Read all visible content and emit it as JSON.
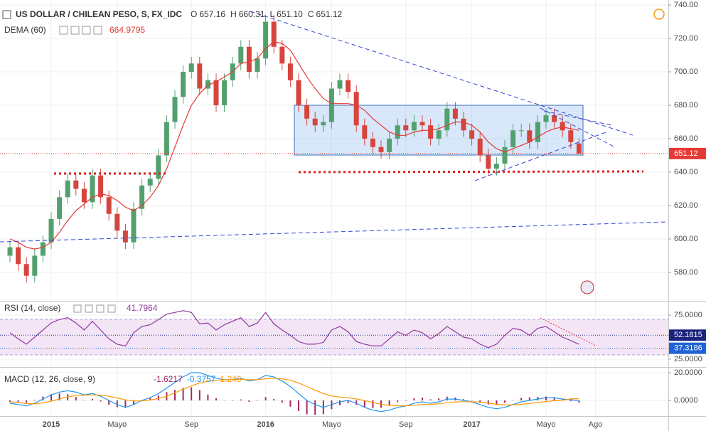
{
  "chart_data": [
    {
      "type": "candlestick",
      "title": "US DOLLAR / CHILEAN PESO, S, FX_IDC",
      "header_keys": [
        "O",
        "H",
        "L",
        "C"
      ],
      "header_values": [
        "657.16",
        "660.31",
        "651.10",
        "651.12"
      ],
      "categories": [
        null,
        null,
        null,
        null,
        null,
        "2015",
        null,
        null,
        null,
        null,
        null,
        null,
        null,
        "Mayo",
        null,
        null,
        null,
        null,
        null,
        null,
        null,
        null,
        "Sep",
        null,
        null,
        null,
        null,
        null,
        null,
        null,
        null,
        "2016",
        null,
        null,
        null,
        null,
        null,
        null,
        null,
        "Mayo",
        null,
        null,
        null,
        null,
        null,
        null,
        null,
        null,
        "Sep",
        null,
        null,
        null,
        null,
        null,
        null,
        null,
        "2017",
        null,
        null,
        null,
        null,
        null,
        null,
        null,
        null,
        "Mayo",
        null,
        null,
        null,
        null,
        null,
        "Ago"
      ],
      "open": [
        590,
        595,
        585,
        578,
        590,
        598,
        612,
        625,
        635,
        630,
        622,
        638,
        625,
        615,
        605,
        598,
        618,
        632,
        636,
        650,
        670,
        685,
        700,
        705,
        690,
        695,
        680,
        695,
        705,
        715,
        700,
        708,
        730,
        715,
        705,
        695,
        680,
        672,
        668,
        670,
        690,
        695,
        688,
        668,
        660,
        655,
        652,
        660,
        668,
        665,
        670,
        668,
        660,
        665,
        678,
        672,
        665,
        660,
        650,
        642,
        645,
        655,
        665,
        665,
        658,
        670,
        674,
        670,
        665,
        657.16,
        null,
        null
      ],
      "high": [
        599,
        599,
        589,
        594,
        602,
        616,
        629,
        639,
        639,
        634,
        642,
        642,
        629,
        619,
        609,
        622,
        636,
        640,
        654,
        674,
        689,
        704,
        709,
        709,
        699,
        699,
        699,
        709,
        719,
        719,
        712,
        734,
        734,
        719,
        709,
        699,
        684,
        676,
        674,
        694,
        699,
        699,
        692,
        672,
        664,
        659,
        664,
        672,
        672,
        674,
        674,
        672,
        669,
        682,
        682,
        676,
        669,
        664,
        654,
        649,
        659,
        669,
        669,
        669,
        674,
        678,
        678,
        674,
        669,
        660.31,
        null,
        null
      ],
      "low": [
        586,
        581,
        574,
        574,
        586,
        594,
        608,
        621,
        626,
        618,
        618,
        621,
        611,
        601,
        594,
        594,
        614,
        628,
        632,
        646,
        666,
        681,
        696,
        686,
        686,
        676,
        676,
        691,
        701,
        696,
        696,
        704,
        711,
        701,
        691,
        676,
        668,
        664,
        664,
        666,
        686,
        684,
        664,
        656,
        651,
        648,
        648,
        656,
        661,
        661,
        664,
        656,
        656,
        661,
        668,
        661,
        656,
        646,
        638,
        638,
        641,
        651,
        661,
        654,
        654,
        666,
        666,
        661,
        654,
        651.1,
        null,
        null
      ],
      "close": [
        595,
        585,
        578,
        590,
        598,
        612,
        625,
        635,
        630,
        622,
        638,
        625,
        615,
        605,
        598,
        618,
        632,
        636,
        650,
        670,
        685,
        700,
        705,
        690,
        695,
        680,
        695,
        705,
        715,
        700,
        708,
        730,
        715,
        705,
        695,
        680,
        672,
        668,
        670,
        690,
        695,
        688,
        668,
        660,
        655,
        652,
        660,
        668,
        665,
        670,
        668,
        660,
        665,
        678,
        672,
        665,
        660,
        650,
        642,
        645,
        655,
        665,
        665,
        658,
        670,
        674,
        670,
        665,
        658,
        651.12,
        null,
        null
      ],
      "up_color": "#53a06f",
      "down_color": "#d6453d",
      "series": [
        {
          "name": "DEMA (60)",
          "color": "#e53935",
          "values": [
            600,
            598,
            595,
            594,
            595,
            598,
            604,
            611,
            617,
            621,
            625,
            627,
            626,
            623,
            619,
            617,
            620,
            625,
            632,
            642,
            655,
            668,
            680,
            687,
            692,
            694,
            697,
            700,
            705,
            706,
            708,
            714,
            718,
            717,
            713,
            705,
            697,
            690,
            684,
            681,
            681,
            681,
            680,
            677,
            672,
            668,
            664,
            662,
            662,
            664,
            665,
            665,
            666,
            668,
            670,
            670,
            668,
            664,
            658,
            654,
            652,
            654,
            656,
            658,
            661,
            664,
            666,
            667,
            666,
            664.9795,
            null,
            null
          ]
        }
      ],
      "ylim": [
        563.4,
        743
      ],
      "yticks": [
        {
          "value": 580,
          "label": "580.00"
        },
        {
          "value": 600,
          "label": "600.00"
        },
        {
          "value": 620,
          "label": "620.00"
        },
        {
          "value": 640,
          "label": "640.00"
        },
        {
          "value": 660,
          "label": "660.00"
        },
        {
          "value": 680,
          "label": "680.00"
        },
        {
          "value": 700,
          "label": "700.00"
        },
        {
          "value": 720,
          "label": "720.00"
        },
        {
          "value": 740,
          "label": "740.00"
        }
      ],
      "grid": true
    },
    {
      "type": "line",
      "series": [
        {
          "name": "RSI (14, close)",
          "color": "#8e3a9e",
          "values": [
            55,
            48,
            42,
            50,
            58,
            66,
            70,
            72,
            66,
            58,
            68,
            58,
            48,
            42,
            40,
            55,
            62,
            64,
            70,
            76,
            78,
            80,
            78,
            65,
            66,
            58,
            64,
            68,
            72,
            62,
            66,
            78,
            65,
            58,
            52,
            45,
            42,
            42,
            44,
            58,
            62,
            56,
            45,
            42,
            40,
            40,
            48,
            56,
            52,
            58,
            55,
            48,
            54,
            62,
            56,
            50,
            48,
            42,
            38,
            42,
            52,
            60,
            58,
            52,
            60,
            62,
            56,
            50,
            46,
            41.7964,
            null,
            null
          ]
        }
      ],
      "markers": [
        {
          "value": 52.1815,
          "color": "#1a237e"
        },
        {
          "value": 37.3186,
          "color": "#1e63d6"
        }
      ],
      "ylim": [
        16.9,
        89.5
      ],
      "yticks": [
        {
          "value": 25,
          "label": "25.0000"
        },
        {
          "value": 75,
          "label": "75.0000"
        }
      ],
      "grid": true
    },
    {
      "type": "line",
      "title": "MACD (12, 26, close, 9)",
      "series": [
        {
          "type": "bar",
          "color": "#a3276a",
          "values": [
            -1,
            -1.5,
            -1.7,
            0.5,
            2.8,
            4.5,
            5,
            4.5,
            2.5,
            0.2,
            1,
            -0.8,
            -3,
            -4.8,
            -5.4,
            -2.6,
            0.3,
            1.7,
            3.6,
            6,
            7.5,
            9,
            9.5,
            7.5,
            4.2,
            1.5,
            0.2,
            0,
            0.7,
            -1,
            0,
            2.4,
            1,
            -1.6,
            -4.5,
            -7.6,
            -10,
            -10.4,
            -9.9,
            -6.3,
            -3.4,
            -1.9,
            -3.1,
            -4.9,
            -5.5,
            -5.2,
            -3.4,
            -1.1,
            -0.1,
            1.5,
            2,
            0.8,
            1.4,
            2.7,
            2.1,
            0.9,
            -0.1,
            -1.7,
            -3,
            -3.2,
            -1.7,
            0.3,
            1.8,
            2.2,
            2.5,
            2.8,
            2.2,
            0.9,
            -0.6,
            -1.6217,
            null,
            null
          ]
        },
        {
          "color": "#2196f3",
          "values": [
            -2,
            -3,
            -4,
            -2,
            1,
            4,
            6,
            7,
            6,
            4,
            5,
            3,
            0,
            -3,
            -5,
            -3,
            0,
            2,
            5,
            9,
            13,
            17,
            20,
            20,
            18,
            16,
            15,
            15,
            16,
            14,
            15,
            18,
            17,
            14,
            10,
            5,
            0,
            -3,
            -5,
            -3,
            -1,
            0,
            -2,
            -5,
            -7,
            -8,
            -7,
            -5,
            -4,
            -2,
            -1,
            -2,
            -1,
            1,
            1,
            0,
            -1,
            -3,
            -5,
            -6,
            -5,
            -3,
            -1,
            0,
            1,
            2,
            2,
            1,
            0.5,
            -0.3757,
            null,
            null
          ]
        },
        {
          "color": "#ff9800",
          "values": [
            -1,
            -1.5,
            -2.3,
            -2.5,
            -1.8,
            -0.5,
            1,
            2.5,
            3.5,
            3.8,
            4,
            3.8,
            3,
            1.8,
            0.4,
            -0.4,
            -0.3,
            0.3,
            1.4,
            3,
            5.5,
            8,
            10.5,
            12.5,
            13.8,
            14.5,
            14.8,
            15,
            15.3,
            15,
            15,
            15.6,
            16,
            15.6,
            14.5,
            12.6,
            10,
            7.4,
            4.9,
            3.3,
            2.4,
            1.9,
            1.1,
            -0.1,
            -1.5,
            -2.8,
            -3.6,
            -3.9,
            -3.9,
            -3.5,
            -3,
            -2.8,
            -2.4,
            -1.7,
            -1.1,
            -0.9,
            -0.9,
            -1.3,
            -2,
            -2.8,
            -3.3,
            -3.3,
            -2.8,
            -2.2,
            -1.5,
            -0.8,
            -0.2,
            0.1,
            1.1,
            1.246,
            null,
            null
          ]
        }
      ],
      "ylim": [
        -11.28,
        23.08
      ],
      "yticks": [
        {
          "value": 0,
          "label": "0.0000"
        },
        {
          "value": 20,
          "label": "20.0000"
        }
      ],
      "grid": true
    }
  ]
}
